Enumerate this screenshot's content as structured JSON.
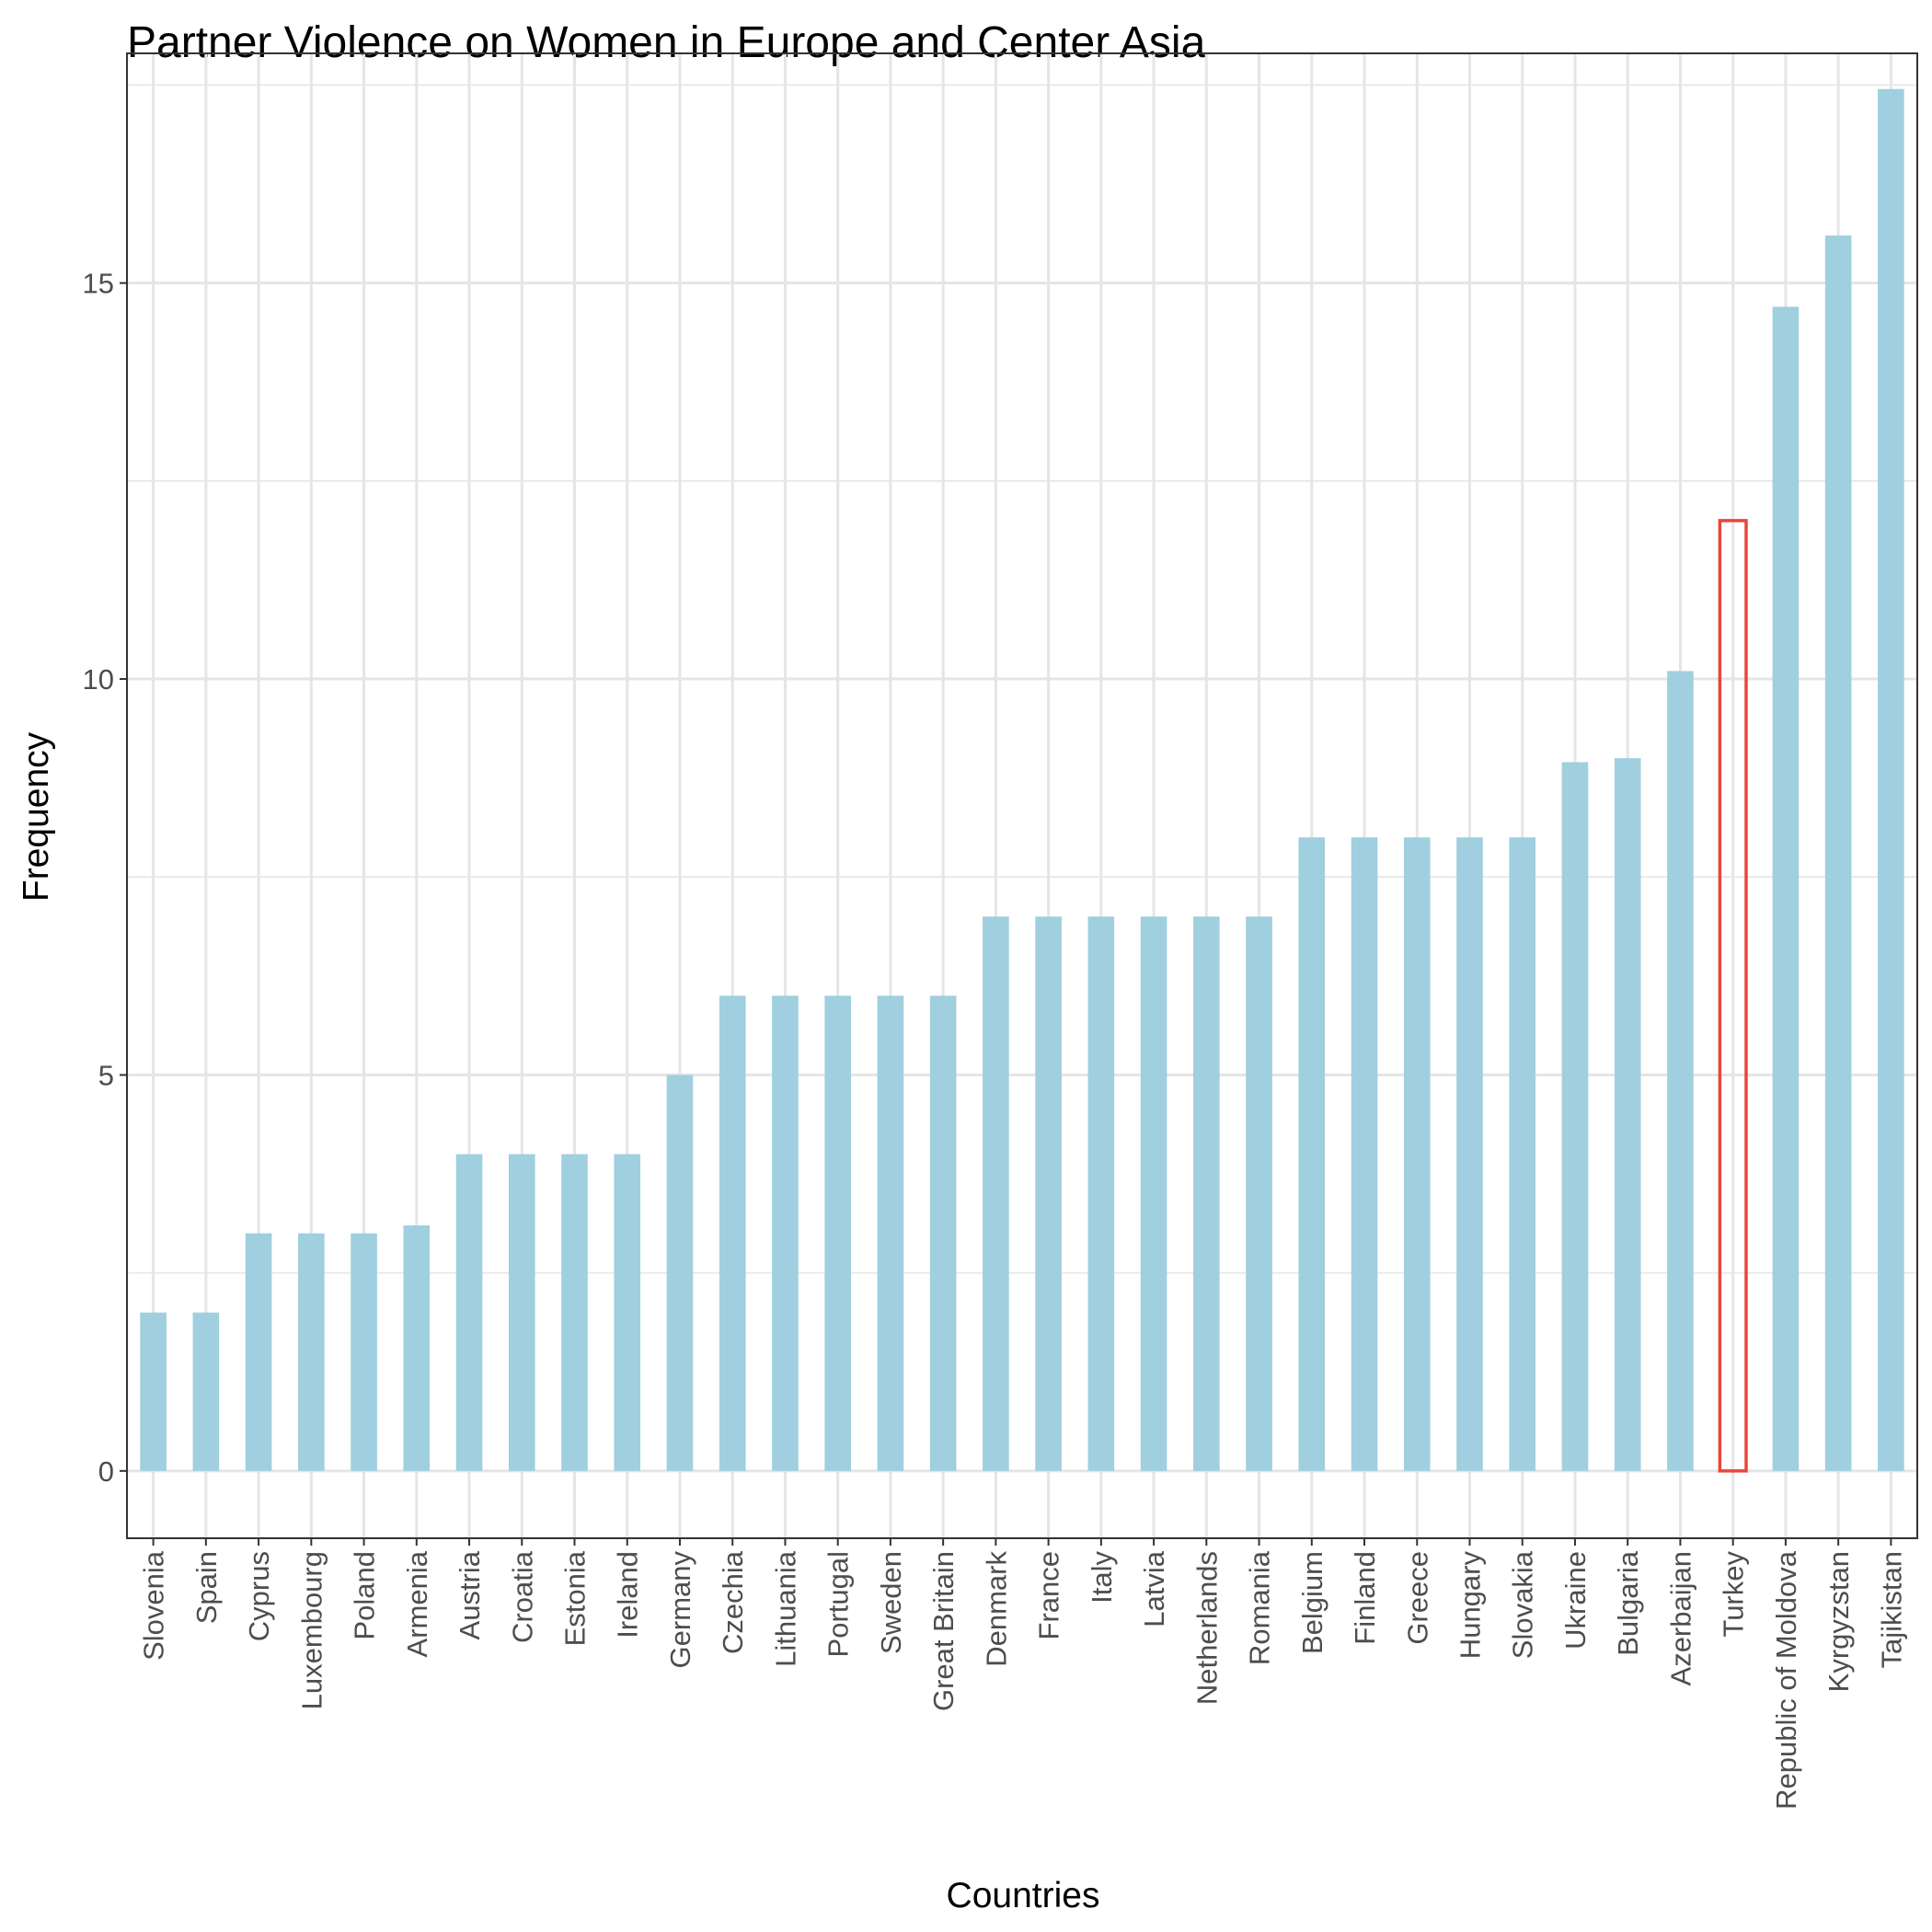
{
  "chart_data": {
    "type": "bar",
    "title": "Partner Violence on  Women in Europe and Center Asia",
    "xlabel": "Countries",
    "ylabel": "Frequency",
    "ylim": [
      -0.85,
      17.9
    ],
    "y_ticks": [
      0,
      5,
      10,
      15
    ],
    "y_tick_labels": [
      "0",
      "5",
      "10",
      "15"
    ],
    "grid": true,
    "legend": "none",
    "categories": [
      "Slovenia",
      "Spain",
      "Cyprus",
      "Luxembourg",
      "Poland",
      "Armenia",
      "Austria",
      "Croatia",
      "Estonia",
      "Ireland",
      "Germany",
      "Czechia",
      "Lithuania",
      "Portugal",
      "Sweden",
      "Great Britain",
      "Denmark",
      "France",
      "Italy",
      "Latvia",
      "Netherlands",
      "Romania",
      "Belgium",
      "Finland",
      "Greece",
      "Hungary",
      "Slovakia",
      "Ukraine",
      "Bulgaria",
      "Azerbaijan",
      "Turkey",
      "Republic of Moldova",
      "Kyrgyzstan",
      "Tajikistan"
    ],
    "values": [
      2,
      2,
      3,
      3,
      3,
      3.1,
      4,
      4,
      4,
      4,
      5,
      6,
      6,
      6,
      6,
      6,
      7,
      7,
      7,
      7,
      7,
      7,
      8,
      8,
      8,
      8,
      8,
      8.95,
      9,
      10.1,
      12,
      14.7,
      15.6,
      17.45
    ],
    "highlight": "Turkey",
    "colors": {
      "bar_fill": "#a0cfdf",
      "highlight_outline": "#e8473a",
      "grid": "#e5e5e5",
      "panel_border": "#333333",
      "tick_text": "#4d4d4d"
    }
  }
}
